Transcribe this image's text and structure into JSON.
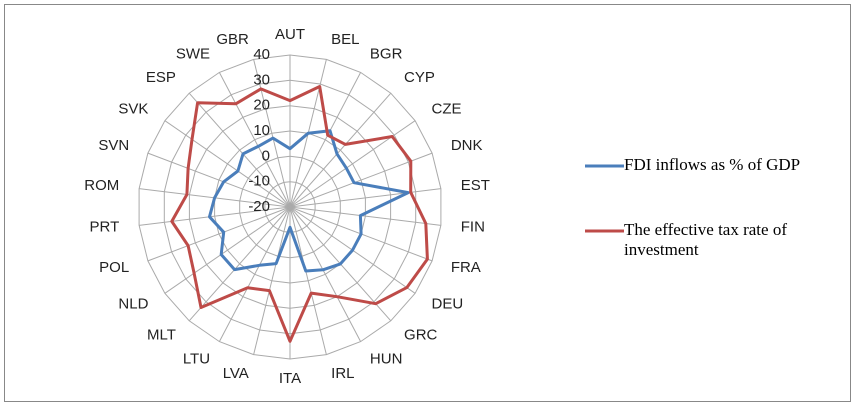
{
  "chart_data": {
    "type": "radar",
    "categories": [
      "AUT",
      "BEL",
      "BGR",
      "CYP",
      "CZE",
      "DNK",
      "EST",
      "FIN",
      "FRA",
      "DEU",
      "GRC",
      "HUN",
      "IRL",
      "ITA",
      "LVA",
      "LTU",
      "MLT",
      "NLD",
      "POL",
      "PRT",
      "ROM",
      "SVN",
      "SVK",
      "ESP",
      "SWE",
      "GBR"
    ],
    "series": [
      {
        "name": "FDI inflows as % of GDP",
        "color": "#4a7ebb",
        "values": [
          3,
          10,
          14,
          8,
          7,
          7,
          27,
          8,
          10,
          10,
          10,
          8,
          6,
          -12,
          3,
          6,
          13,
          13,
          8,
          12,
          10,
          8,
          5,
          8,
          7,
          8
        ]
      },
      {
        "name": "The effective tax rate of investment",
        "color": "#be4b48",
        "values": [
          22,
          29,
          12,
          13,
          29,
          31,
          28,
          34,
          38,
          36,
          31,
          20,
          15,
          33,
          14,
          16,
          33,
          26,
          23,
          27,
          21,
          23,
          27,
          35,
          26,
          28
        ]
      }
    ],
    "ylim": [
      -20,
      40
    ],
    "yticks": [
      -20,
      -10,
      0,
      10,
      20,
      30,
      40
    ],
    "grid": true,
    "legend": "right"
  }
}
